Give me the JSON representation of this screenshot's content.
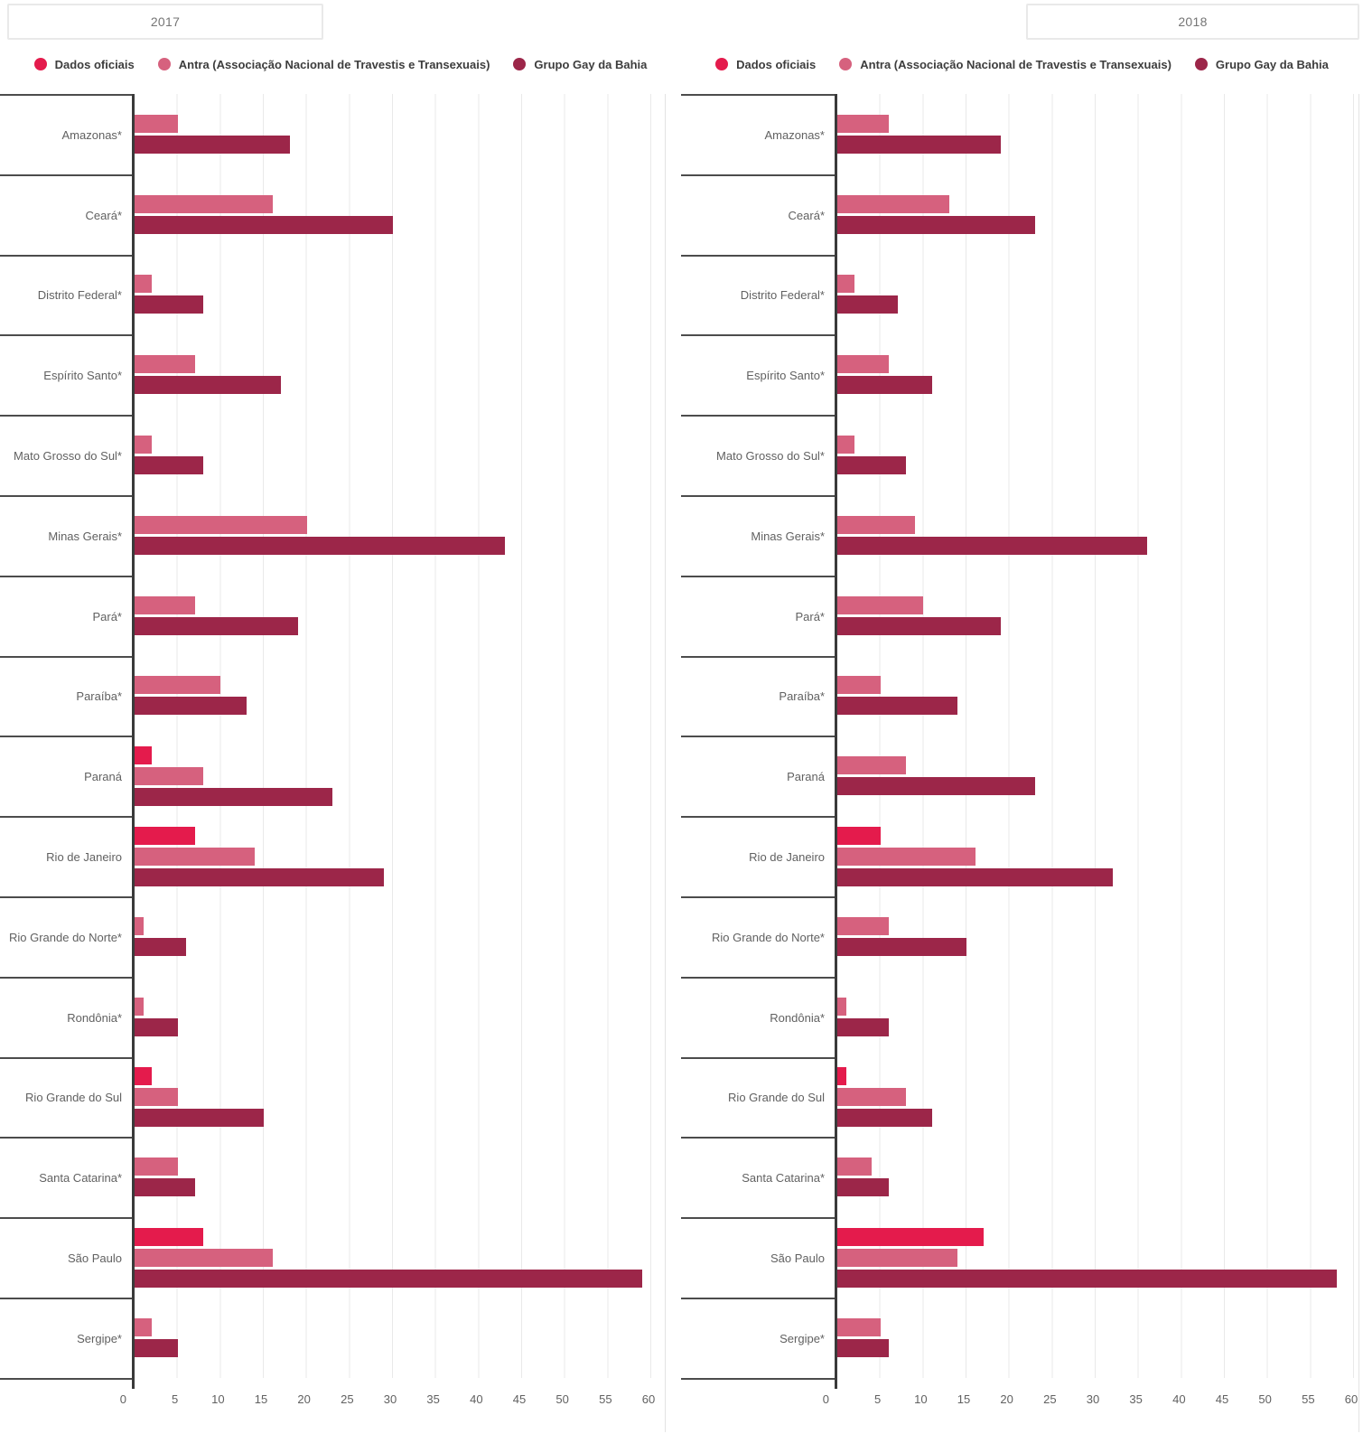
{
  "panels": [
    {
      "year_label": "2017",
      "tab_side": "left"
    },
    {
      "year_label": "2018",
      "tab_side": "right"
    }
  ],
  "legend_labels": [
    "Dados oficiais",
    "Antra (Associação Nacional de Travestis e Transexuais)",
    "Grupo Gay da Bahia"
  ],
  "colors": {
    "dados_oficiais": "#E41B4C",
    "antra": "#D6617E",
    "grupo_gay_da_bahia": "#9C2649",
    "gridline": "#E9E9E9",
    "separator": "#4C4C4C",
    "axis_line": "#3A3A3A",
    "label_text": "#616161",
    "tab_text": "#757575"
  },
  "chart_data": [
    {
      "type": "bar",
      "orientation": "horizontal",
      "title": "2017",
      "legend_position": "top",
      "grid": true,
      "xlim": [
        0,
        60
      ],
      "xticks": [
        0,
        5,
        10,
        15,
        20,
        25,
        30,
        35,
        40,
        45,
        50,
        55,
        60
      ],
      "categories": [
        "Amazonas*",
        "Ceará*",
        "Distrito Federal*",
        "Espírito Santo*",
        "Mato Grosso do Sul*",
        "Minas Gerais*",
        "Pará*",
        "Paraíba*",
        "Paraná",
        "Rio de Janeiro",
        "Rio Grande do Norte*",
        "Rondônia*",
        "Rio Grande do Sul",
        "Santa Catarina*",
        "São Paulo",
        "Sergipe*"
      ],
      "series": [
        {
          "name": "Dados oficiais",
          "color": "#E41B4C",
          "values": [
            null,
            null,
            null,
            null,
            null,
            null,
            null,
            null,
            2,
            7,
            null,
            null,
            2,
            null,
            8,
            null
          ]
        },
        {
          "name": "Antra (Associação Nacional de Travestis e Transexuais)",
          "color": "#D6617E",
          "values": [
            5,
            16,
            2,
            7,
            2,
            20,
            7,
            10,
            8,
            14,
            1,
            1,
            5,
            5,
            16,
            2
          ]
        },
        {
          "name": "Grupo Gay da Bahia",
          "color": "#9C2649",
          "values": [
            18,
            30,
            8,
            17,
            8,
            43,
            19,
            13,
            23,
            29,
            6,
            5,
            15,
            7,
            59,
            5
          ]
        }
      ]
    },
    {
      "type": "bar",
      "orientation": "horizontal",
      "title": "2018",
      "legend_position": "top",
      "grid": true,
      "xlim": [
        0,
        60
      ],
      "xticks": [
        0,
        5,
        10,
        15,
        20,
        25,
        30,
        35,
        40,
        45,
        50,
        55,
        60
      ],
      "categories": [
        "Amazonas*",
        "Ceará*",
        "Distrito Federal*",
        "Espírito Santo*",
        "Mato Grosso do Sul*",
        "Minas Gerais*",
        "Pará*",
        "Paraíba*",
        "Paraná",
        "Rio de Janeiro",
        "Rio Grande do Norte*",
        "Rondônia*",
        "Rio Grande do Sul",
        "Santa Catarina*",
        "São Paulo",
        "Sergipe*"
      ],
      "series": [
        {
          "name": "Dados oficiais",
          "color": "#E41B4C",
          "values": [
            null,
            null,
            null,
            null,
            null,
            null,
            null,
            null,
            null,
            5,
            null,
            null,
            1,
            null,
            17,
            null
          ]
        },
        {
          "name": "Antra (Associação Nacional de Travestis e Transexuais)",
          "color": "#D6617E",
          "values": [
            6,
            13,
            2,
            6,
            2,
            9,
            10,
            5,
            8,
            16,
            6,
            1,
            8,
            4,
            14,
            5
          ]
        },
        {
          "name": "Grupo Gay da Bahia",
          "color": "#9C2649",
          "values": [
            19,
            23,
            7,
            11,
            8,
            36,
            19,
            14,
            23,
            32,
            15,
            6,
            11,
            6,
            58,
            6
          ]
        }
      ]
    }
  ]
}
